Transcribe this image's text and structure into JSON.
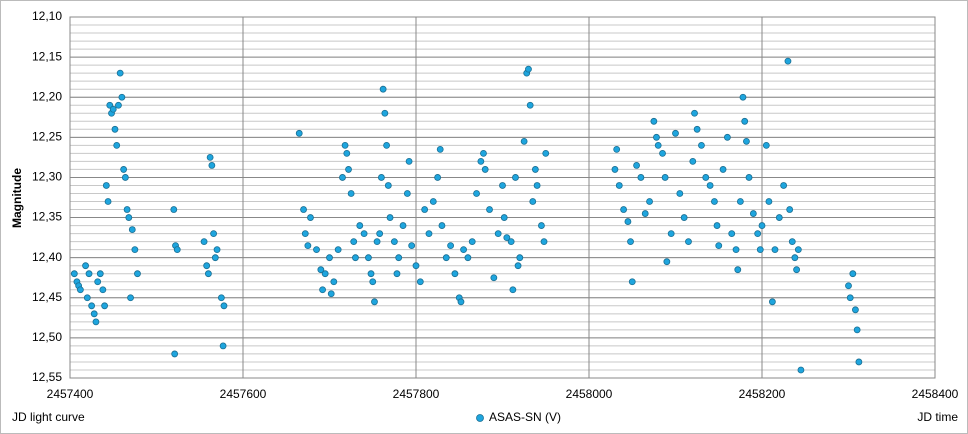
{
  "chart_data": {
    "type": "scatter",
    "y_label": "Magnitude",
    "x_note": "JD light curve",
    "x_label": "JD time",
    "xlim": [
      2457400,
      2458400
    ],
    "xticks": [
      2457400,
      2457600,
      2457800,
      2458000,
      2458200,
      2458400
    ],
    "ylim": [
      12.55,
      12.1
    ],
    "yticks": [
      {
        "value": 12.1,
        "label": "12,10"
      },
      {
        "value": 12.15,
        "label": "12,15"
      },
      {
        "value": 12.2,
        "label": "12,20"
      },
      {
        "value": 12.25,
        "label": "12,25"
      },
      {
        "value": 12.3,
        "label": "12,30"
      },
      {
        "value": 12.35,
        "label": "12,35"
      },
      {
        "value": 12.4,
        "label": "12,40"
      },
      {
        "value": 12.45,
        "label": "12,45"
      },
      {
        "value": 12.5,
        "label": "12,50"
      },
      {
        "value": 12.55,
        "label": "12,55"
      }
    ],
    "y_minor_step": 0.01,
    "grid": true,
    "legend": "bottom",
    "series": [
      {
        "name": "ASAS-SN (V)",
        "color": "#1ea5de",
        "x": [
          2457405,
          2457408,
          2457410,
          2457412,
          2457418,
          2457420,
          2457422,
          2457425,
          2457428,
          2457430,
          2457432,
          2457435,
          2457438,
          2457440,
          2457442,
          2457444,
          2457446,
          2457448,
          2457450,
          2457452,
          2457454,
          2457456,
          2457458,
          2457460,
          2457462,
          2457464,
          2457466,
          2457468,
          2457470,
          2457472,
          2457475,
          2457478,
          2457520,
          2457522,
          2457524,
          2457521,
          2457555,
          2457558,
          2457560,
          2457562,
          2457564,
          2457566,
          2457568,
          2457570,
          2457575,
          2457578,
          2457577,
          2457665,
          2457670,
          2457672,
          2457675,
          2457678,
          2457685,
          2457690,
          2457692,
          2457695,
          2457700,
          2457702,
          2457705,
          2457710,
          2457715,
          2457718,
          2457720,
          2457722,
          2457725,
          2457728,
          2457730,
          2457735,
          2457740,
          2457745,
          2457748,
          2457750,
          2457752,
          2457755,
          2457758,
          2457760,
          2457762,
          2457764,
          2457766,
          2457768,
          2457770,
          2457775,
          2457778,
          2457780,
          2457785,
          2457790,
          2457792,
          2457795,
          2457800,
          2457805,
          2457810,
          2457815,
          2457820,
          2457825,
          2457828,
          2457830,
          2457835,
          2457840,
          2457845,
          2457850,
          2457852,
          2457855,
          2457860,
          2457865,
          2457870,
          2457875,
          2457878,
          2457880,
          2457885,
          2457890,
          2457895,
          2457900,
          2457902,
          2457905,
          2457910,
          2457912,
          2457915,
          2457918,
          2457920,
          2457925,
          2457928,
          2457930,
          2457932,
          2457935,
          2457938,
          2457940,
          2457945,
          2457948,
          2457950,
          2458030,
          2458032,
          2458035,
          2458040,
          2458045,
          2458048,
          2458050,
          2458055,
          2458060,
          2458065,
          2458070,
          2458075,
          2458078,
          2458080,
          2458085,
          2458088,
          2458090,
          2458095,
          2458100,
          2458105,
          2458110,
          2458115,
          2458120,
          2458122,
          2458125,
          2458130,
          2458135,
          2458140,
          2458145,
          2458148,
          2458150,
          2458155,
          2458160,
          2458165,
          2458170,
          2458172,
          2458175,
          2458178,
          2458180,
          2458182,
          2458185,
          2458190,
          2458195,
          2458198,
          2458200,
          2458205,
          2458208,
          2458212,
          2458215,
          2458220,
          2458225,
          2458230,
          2458232,
          2458235,
          2458238,
          2458240,
          2458242,
          2458245,
          2458300,
          2458302,
          2458305,
          2458308,
          2458310,
          2458312
        ],
        "values": [
          12.42,
          12.43,
          12.435,
          12.44,
          12.41,
          12.45,
          12.42,
          12.46,
          12.47,
          12.48,
          12.43,
          12.42,
          12.44,
          12.46,
          12.31,
          12.33,
          12.21,
          12.22,
          12.215,
          12.24,
          12.26,
          12.21,
          12.17,
          12.2,
          12.29,
          12.3,
          12.34,
          12.35,
          12.45,
          12.365,
          12.39,
          12.42,
          12.34,
          12.385,
          12.39,
          12.52,
          12.38,
          12.41,
          12.42,
          12.275,
          12.285,
          12.37,
          12.4,
          12.39,
          12.45,
          12.46,
          12.51,
          12.245,
          12.34,
          12.37,
          12.385,
          12.35,
          12.39,
          12.415,
          12.44,
          12.42,
          12.4,
          12.445,
          12.43,
          12.39,
          12.3,
          12.26,
          12.27,
          12.29,
          12.32,
          12.38,
          12.4,
          12.36,
          12.37,
          12.4,
          12.42,
          12.43,
          12.455,
          12.38,
          12.37,
          12.3,
          12.19,
          12.22,
          12.26,
          12.31,
          12.35,
          12.38,
          12.42,
          12.4,
          12.36,
          12.32,
          12.28,
          12.385,
          12.41,
          12.43,
          12.34,
          12.37,
          12.33,
          12.3,
          12.265,
          12.36,
          12.4,
          12.385,
          12.42,
          12.45,
          12.455,
          12.39,
          12.4,
          12.38,
          12.32,
          12.28,
          12.27,
          12.29,
          12.34,
          12.425,
          12.37,
          12.31,
          12.35,
          12.375,
          12.38,
          12.44,
          12.3,
          12.41,
          12.4,
          12.255,
          12.17,
          12.165,
          12.21,
          12.33,
          12.29,
          12.31,
          12.36,
          12.38,
          12.27,
          12.29,
          12.265,
          12.31,
          12.34,
          12.355,
          12.38,
          12.43,
          12.285,
          12.3,
          12.345,
          12.33,
          12.23,
          12.25,
          12.26,
          12.27,
          12.3,
          12.405,
          12.37,
          12.245,
          12.32,
          12.35,
          12.38,
          12.28,
          12.22,
          12.24,
          12.26,
          12.3,
          12.31,
          12.33,
          12.36,
          12.385,
          12.29,
          12.25,
          12.37,
          12.39,
          12.415,
          12.33,
          12.2,
          12.23,
          12.255,
          12.3,
          12.345,
          12.37,
          12.39,
          12.36,
          12.26,
          12.33,
          12.455,
          12.39,
          12.35,
          12.31,
          12.155,
          12.34,
          12.38,
          12.4,
          12.415,
          12.39,
          12.54,
          12.435,
          12.45,
          12.42,
          12.465,
          12.49,
          12.53
        ]
      }
    ]
  }
}
